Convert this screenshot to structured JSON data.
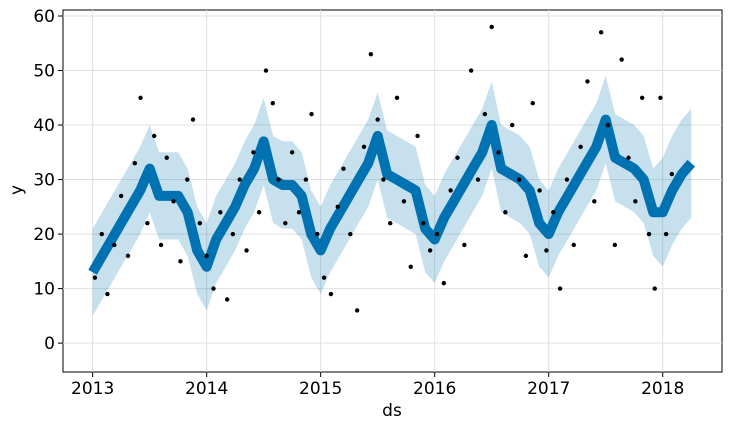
{
  "chart_data": {
    "type": "line",
    "xlabel": "ds",
    "ylabel": "y",
    "xlim": [
      2012.74,
      2018.52
    ],
    "xticks": [
      2013,
      2014,
      2015,
      2016,
      2017,
      2018
    ],
    "ylim": [
      -5.3,
      61.1
    ],
    "yticks": [
      0,
      10,
      20,
      30,
      40,
      50,
      60
    ],
    "grid": true,
    "line_color": "#0072B2",
    "band_color": "#0072B2",
    "point_color": "#000000",
    "x": [
      2013.0,
      2013.083,
      2013.167,
      2013.25,
      2013.333,
      2013.417,
      2013.5,
      2013.583,
      2013.667,
      2013.75,
      2013.833,
      2013.917,
      2014.0,
      2014.083,
      2014.167,
      2014.25,
      2014.333,
      2014.417,
      2014.5,
      2014.583,
      2014.667,
      2014.75,
      2014.833,
      2014.917,
      2015.0,
      2015.083,
      2015.167,
      2015.25,
      2015.333,
      2015.417,
      2015.5,
      2015.583,
      2015.667,
      2015.75,
      2015.833,
      2015.917,
      2016.0,
      2016.083,
      2016.167,
      2016.25,
      2016.333,
      2016.417,
      2016.5,
      2016.583,
      2016.667,
      2016.75,
      2016.833,
      2016.917,
      2017.0,
      2017.083,
      2017.167,
      2017.25,
      2017.333,
      2017.417,
      2017.5,
      2017.583,
      2017.667,
      2017.75,
      2017.833,
      2017.917,
      2018.0,
      2018.083,
      2018.167,
      2018.25
    ],
    "yhat": [
      13,
      16,
      19,
      22,
      25,
      28,
      32,
      27,
      27,
      27,
      24,
      17,
      14,
      19,
      22,
      25,
      29,
      32,
      37,
      30,
      29,
      29,
      27,
      20,
      17,
      21,
      24,
      27,
      30,
      33,
      38,
      31,
      30,
      29,
      28,
      21,
      19,
      23,
      26,
      29,
      32,
      35,
      40,
      32,
      31,
      30,
      28,
      22,
      20,
      24,
      27,
      30,
      33,
      36,
      41,
      34,
      33,
      32,
      30,
      24,
      24,
      28,
      31,
      33
    ],
    "yhat_lower": [
      5,
      8,
      11,
      14,
      17,
      20,
      24,
      19,
      19,
      19,
      16,
      9,
      6,
      11,
      14,
      17,
      21,
      24,
      29,
      22,
      21,
      21,
      19,
      12,
      9,
      13,
      16,
      19,
      22,
      25,
      30,
      23,
      22,
      21,
      20,
      13,
      11,
      15,
      18,
      21,
      24,
      27,
      32,
      24,
      23,
      22,
      20,
      14,
      12,
      16,
      19,
      22,
      25,
      28,
      33,
      26,
      25,
      24,
      22,
      16,
      14,
      18,
      21,
      23
    ],
    "yhat_upper": [
      21,
      24,
      27,
      30,
      33,
      36,
      40,
      35,
      35,
      35,
      32,
      25,
      22,
      27,
      30,
      33,
      37,
      40,
      45,
      38,
      37,
      37,
      35,
      28,
      25,
      29,
      32,
      35,
      38,
      41,
      46,
      39,
      38,
      37,
      36,
      29,
      27,
      31,
      34,
      37,
      40,
      43,
      48,
      40,
      39,
      38,
      36,
      30,
      28,
      32,
      35,
      38,
      41,
      44,
      49,
      42,
      41,
      40,
      38,
      32,
      34,
      38,
      41,
      43
    ],
    "points": {
      "x": [
        2013.02,
        2013.08,
        2013.13,
        2013.19,
        2013.25,
        2013.31,
        2013.37,
        2013.42,
        2013.48,
        2013.54,
        2013.6,
        2013.65,
        2013.71,
        2013.77,
        2013.83,
        2013.88,
        2013.94,
        2014.0,
        2014.06,
        2014.12,
        2014.18,
        2014.23,
        2014.29,
        2014.35,
        2014.41,
        2014.46,
        2014.52,
        2014.58,
        2014.63,
        2014.69,
        2014.75,
        2014.81,
        2014.87,
        2014.92,
        2014.97,
        2015.03,
        2015.09,
        2015.15,
        2015.2,
        2015.26,
        2015.32,
        2015.38,
        2015.44,
        2015.5,
        2015.55,
        2015.61,
        2015.67,
        2015.73,
        2015.79,
        2015.85,
        2015.9,
        2015.96,
        2016.02,
        2016.08,
        2016.14,
        2016.2,
        2016.26,
        2016.32,
        2016.38,
        2016.44,
        2016.5,
        2016.56,
        2016.62,
        2016.68,
        2016.74,
        2016.8,
        2016.86,
        2016.92,
        2016.98,
        2017.04,
        2017.1,
        2017.16,
        2017.22,
        2017.28,
        2017.34,
        2017.4,
        2017.46,
        2017.52,
        2017.58,
        2017.64,
        2017.7,
        2017.76,
        2017.82,
        2017.88,
        2017.93,
        2017.98,
        2018.03,
        2018.08
      ],
      "y": [
        12,
        20,
        9,
        18,
        27,
        16,
        33,
        45,
        22,
        38,
        18,
        34,
        26,
        15,
        30,
        41,
        22,
        16,
        10,
        24,
        8,
        20,
        30,
        17,
        35,
        24,
        50,
        44,
        30,
        22,
        35,
        24,
        30,
        42,
        20,
        12,
        9,
        25,
        32,
        20,
        6,
        36,
        53,
        41,
        30,
        22,
        45,
        26,
        14,
        38,
        22,
        17,
        20,
        11,
        28,
        34,
        18,
        50,
        30,
        42,
        58,
        35,
        24,
        40,
        30,
        16,
        44,
        28,
        17,
        24,
        10,
        30,
        18,
        36,
        48,
        26,
        57,
        40,
        18,
        52,
        34,
        26,
        45,
        20,
        10,
        45,
        20,
        31
      ]
    }
  }
}
